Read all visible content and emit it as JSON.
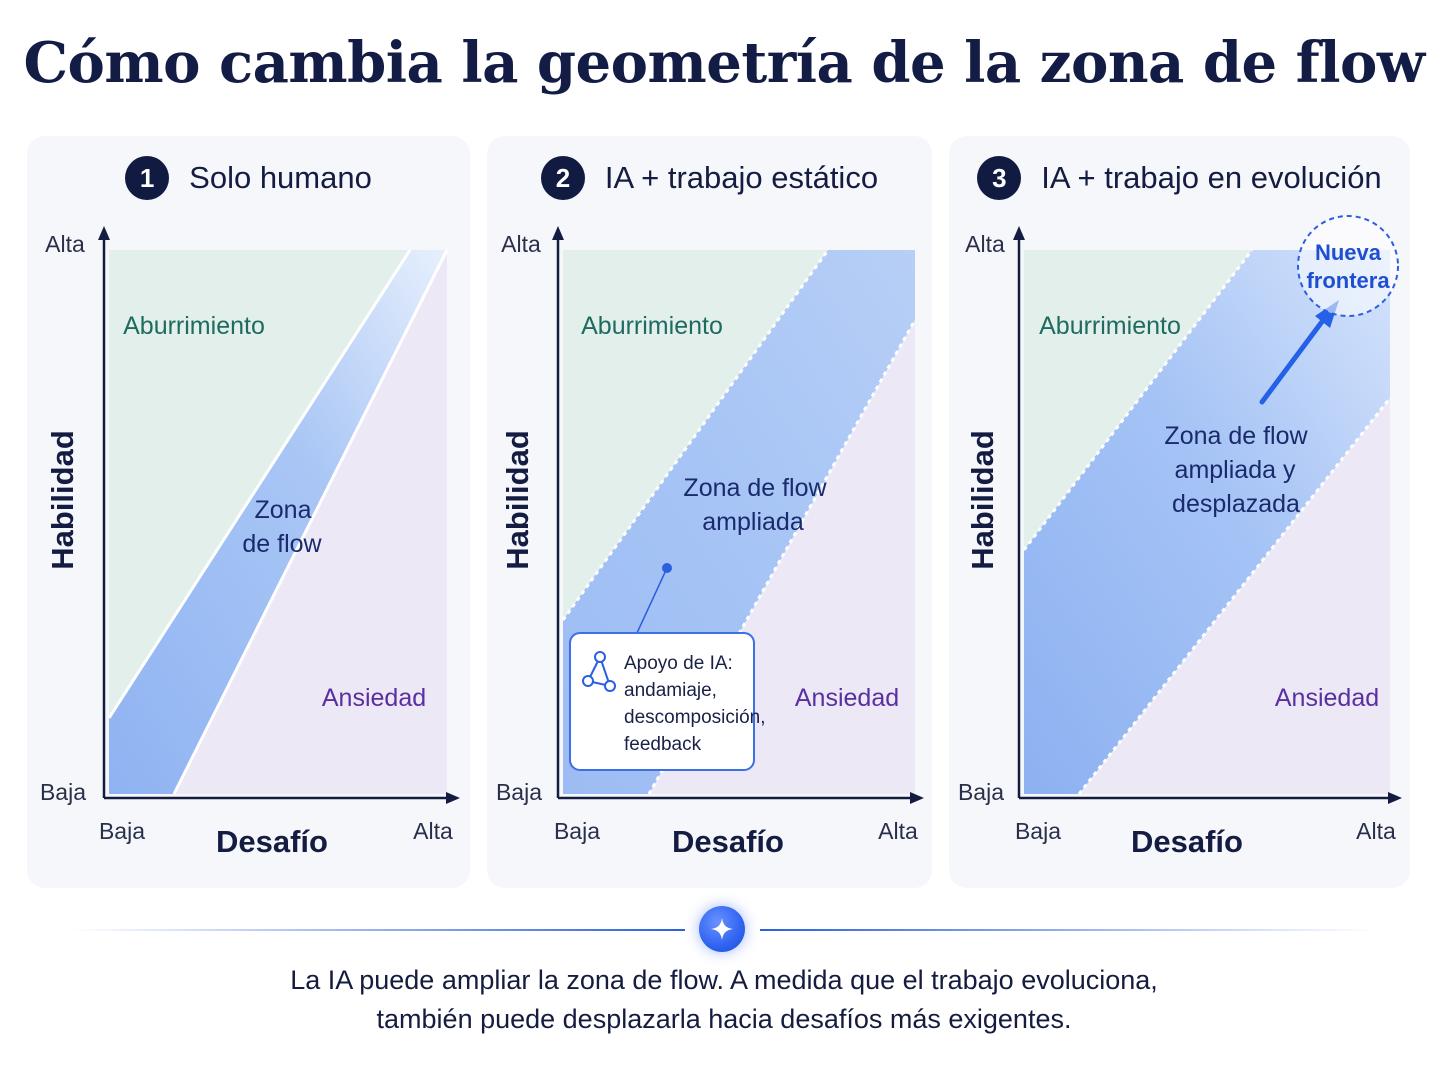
{
  "title": "Cómo cambia la geometría de la zona de flow",
  "axes": {
    "y_title": "Habilidad",
    "x_title": "Desafío",
    "high": "Alta",
    "low": "Baja"
  },
  "panels": [
    {
      "number": "1",
      "title": "Solo humano",
      "label_boredom": "Aburrimiento",
      "label_anxiety": "Ansiedad",
      "flow_label": [
        "Zona",
        "de flow"
      ]
    },
    {
      "number": "2",
      "title": "IA + trabajo estático",
      "label_boredom": "Aburrimiento",
      "label_anxiety": "Ansiedad",
      "flow_label": [
        "Zona de flow",
        "ampliada"
      ],
      "callout": [
        "Apoyo de IA:",
        "andamiaje,",
        "descomposición,",
        "feedback"
      ]
    },
    {
      "number": "3",
      "title": "IA + trabajo en evolución",
      "label_boredom": "Aburrimiento",
      "label_anxiety": "Ansiedad",
      "flow_label": [
        "Zona de flow",
        "ampliada y",
        "desplazada"
      ],
      "frontier": [
        "Nueva",
        "frontera"
      ]
    }
  ],
  "footer": {
    "line1": "La IA puede ampliar la zona de flow. A medida que el trabajo evoluciona,",
    "line2": "también puede desplazarla hacia desafíos más exigentes."
  },
  "colors": {
    "boredom_fill": "#e3efea",
    "anxiety_fill": "#ece8f6",
    "flow_fill": "#a9c6f5",
    "boredom_text": "#1f6b62",
    "anxiety_text": "#5a2fa0",
    "flow_text": "#1a2a6c",
    "accent": "#2b5fe0"
  }
}
